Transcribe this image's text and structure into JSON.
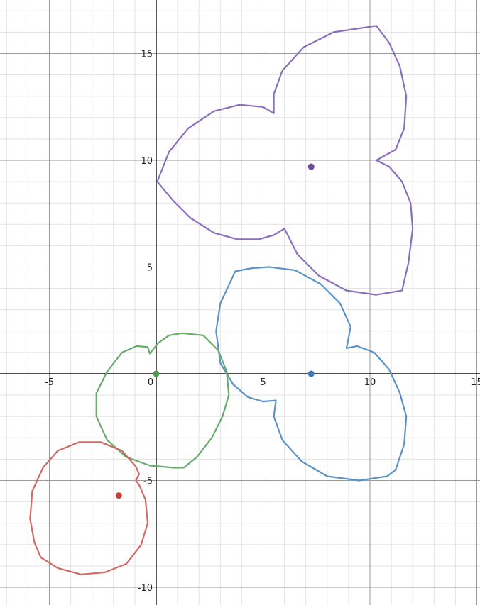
{
  "chart_data": {
    "type": "line",
    "title": "",
    "xlabel": "",
    "ylabel": "",
    "xlim": [
      -7.2,
      15.2
    ],
    "ylim": [
      -10.8,
      17.4
    ],
    "grid": true,
    "x_ticks": [
      -5,
      0,
      5,
      10,
      15
    ],
    "x_tick_labels": [
      "-5",
      "0",
      "5",
      "10",
      "15"
    ],
    "y_ticks": [
      -10,
      -5,
      5,
      10,
      15
    ],
    "y_tick_labels": [
      "-10",
      "-5",
      "5",
      "10",
      "15"
    ],
    "series": [
      {
        "color": "#8a6fbd",
        "center": [
          7.25,
          9.7
        ],
        "curve": [
          [
            10.3,
            16.3
          ],
          [
            10.9,
            15.5
          ],
          [
            11.4,
            14.4
          ],
          [
            11.7,
            13.0
          ],
          [
            11.6,
            11.5
          ],
          [
            11.2,
            10.5
          ],
          [
            10.3,
            10.0
          ],
          [
            10.9,
            9.7
          ],
          [
            11.5,
            9.0
          ],
          [
            11.9,
            8.0
          ],
          [
            12.0,
            6.8
          ],
          [
            11.8,
            5.2
          ],
          [
            11.5,
            3.9
          ],
          [
            10.3,
            3.7
          ],
          [
            8.9,
            3.9
          ],
          [
            7.6,
            4.6
          ],
          [
            6.6,
            5.6
          ],
          [
            6.0,
            6.8
          ],
          [
            5.5,
            6.5
          ],
          [
            4.8,
            6.3
          ],
          [
            3.8,
            6.3
          ],
          [
            2.7,
            6.6
          ],
          [
            1.6,
            7.3
          ],
          [
            0.8,
            8.1
          ],
          [
            0.05,
            9.0
          ],
          [
            0.6,
            10.4
          ],
          [
            1.5,
            11.5
          ],
          [
            2.7,
            12.3
          ],
          [
            3.9,
            12.6
          ],
          [
            5.0,
            12.5
          ],
          [
            5.5,
            12.2
          ],
          [
            5.5,
            13.1
          ],
          [
            5.9,
            14.2
          ],
          [
            6.9,
            15.3
          ],
          [
            8.3,
            16.0
          ],
          [
            10.3,
            16.3
          ]
        ]
      },
      {
        "color": "#5b93c6",
        "center": [
          7.25,
          0.0
        ],
        "curve": [
          [
            3.7,
            4.8
          ],
          [
            4.5,
            4.95
          ],
          [
            5.3,
            5.0
          ],
          [
            6.5,
            4.85
          ],
          [
            7.7,
            4.2
          ],
          [
            8.6,
            3.3
          ],
          [
            9.1,
            2.2
          ],
          [
            8.9,
            1.2
          ],
          [
            9.4,
            1.3
          ],
          [
            10.2,
            1.0
          ],
          [
            10.9,
            0.2
          ],
          [
            11.4,
            -0.9
          ],
          [
            11.7,
            -2.0
          ],
          [
            11.6,
            -3.3
          ],
          [
            11.2,
            -4.5
          ],
          [
            10.8,
            -4.8
          ],
          [
            9.5,
            -5.0
          ],
          [
            8.0,
            -4.8
          ],
          [
            6.8,
            -4.1
          ],
          [
            5.9,
            -3.1
          ],
          [
            5.5,
            -2.0
          ],
          [
            5.6,
            -1.25
          ],
          [
            5.0,
            -1.3
          ],
          [
            4.3,
            -1.1
          ],
          [
            3.6,
            -0.5
          ],
          [
            3.0,
            0.5
          ],
          [
            2.8,
            2.0
          ],
          [
            3.0,
            3.3
          ],
          [
            3.7,
            4.8
          ]
        ]
      },
      {
        "color": "#68ab6a",
        "center": [
          0.0,
          0.0
        ],
        "curve": [
          [
            -0.3,
            0.95
          ],
          [
            -0.4,
            1.25
          ],
          [
            -0.9,
            1.3
          ],
          [
            -1.6,
            1.0
          ],
          [
            -2.3,
            0.1
          ],
          [
            -2.8,
            -0.9
          ],
          [
            -2.8,
            -2.0
          ],
          [
            -2.3,
            -3.1
          ],
          [
            -1.4,
            -3.9
          ],
          [
            -0.3,
            -4.3
          ],
          [
            0.8,
            -4.4
          ],
          [
            1.3,
            -4.4
          ],
          [
            1.9,
            -3.9
          ],
          [
            2.6,
            -3.0
          ],
          [
            3.1,
            -2.0
          ],
          [
            3.4,
            -1.0
          ],
          [
            3.3,
            0.1
          ],
          [
            2.9,
            1.1
          ],
          [
            2.2,
            1.8
          ],
          [
            1.2,
            1.9
          ],
          [
            0.6,
            1.8
          ],
          [
            0.1,
            1.45
          ],
          [
            -0.3,
            0.95
          ]
        ]
      },
      {
        "color": "#cf6b66",
        "center": [
          -1.75,
          -5.7
        ],
        "curve": [
          [
            -0.95,
            -5.0
          ],
          [
            -0.8,
            -4.7
          ],
          [
            -0.95,
            -4.35
          ],
          [
            -1.6,
            -3.6
          ],
          [
            -2.6,
            -3.2
          ],
          [
            -3.6,
            -3.2
          ],
          [
            -4.6,
            -3.6
          ],
          [
            -5.3,
            -4.4
          ],
          [
            -5.8,
            -5.5
          ],
          [
            -5.9,
            -6.8
          ],
          [
            -5.7,
            -7.9
          ],
          [
            -5.4,
            -8.6
          ],
          [
            -4.6,
            -9.1
          ],
          [
            -3.5,
            -9.4
          ],
          [
            -2.4,
            -9.3
          ],
          [
            -1.4,
            -8.9
          ],
          [
            -0.7,
            -8.0
          ],
          [
            -0.4,
            -7.0
          ],
          [
            -0.5,
            -5.9
          ],
          [
            -0.8,
            -5.2
          ],
          [
            -0.95,
            -5.0
          ]
        ]
      }
    ],
    "points": [
      {
        "x": 7.25,
        "y": 9.7,
        "color": "#6b4aa0"
      },
      {
        "x": 7.25,
        "y": 0.0,
        "color": "#3c7ab8"
      },
      {
        "x": 0.0,
        "y": 0.0,
        "color": "#4f9a51"
      },
      {
        "x": -1.75,
        "y": -5.7,
        "color": "#c8403a"
      }
    ]
  }
}
